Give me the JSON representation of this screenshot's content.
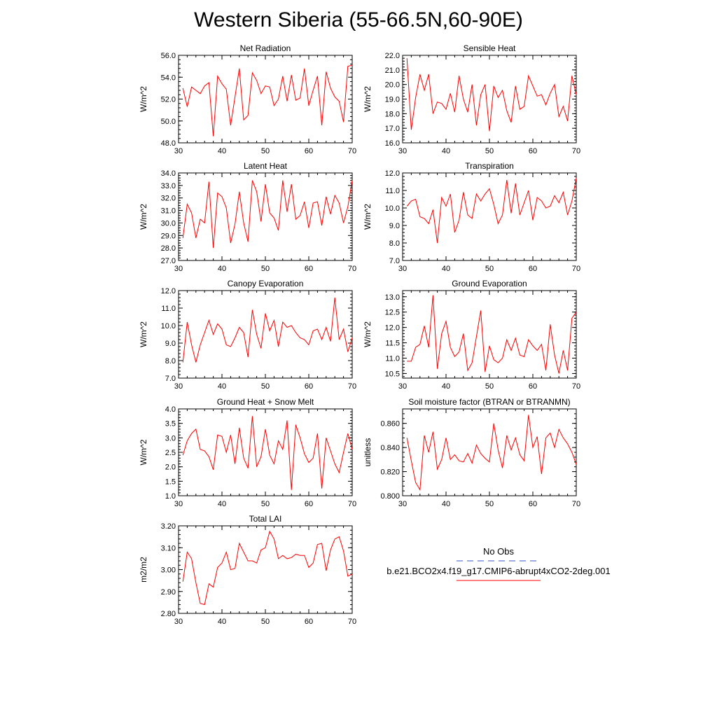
{
  "title": "Western Siberia (55-66.5N,60-90E)",
  "legend": {
    "items": [
      {
        "label": "No Obs",
        "color": "#3355cc",
        "style": "dashed"
      },
      {
        "label": "b.e21.BCO2x4.f19_g17.CMIP6-abrupt4xCO2-2deg.001",
        "color": "#ff0000",
        "style": "solid"
      }
    ]
  },
  "chart_data": [
    {
      "type": "line",
      "title": "Net Radiation",
      "ylabel": "W/m^2",
      "xlim": [
        30,
        70
      ],
      "ylim": [
        48,
        56
      ],
      "yticks": [
        "48.0",
        "50.0",
        "52.0",
        "54.0",
        "56.0"
      ],
      "xticks": [
        "30",
        "40",
        "50",
        "60",
        "70"
      ],
      "series": [
        {
          "color": "#ff0000",
          "x": [
            31,
            32,
            33,
            34,
            35,
            36,
            37,
            38,
            39,
            40,
            41,
            42,
            43,
            44,
            45,
            46,
            47,
            48,
            49,
            50,
            51,
            52,
            53,
            54,
            55,
            56,
            57,
            58,
            59,
            60,
            61,
            62,
            63,
            64,
            65,
            66,
            67,
            68,
            69,
            70
          ],
          "values": [
            53.0,
            51.3,
            53.1,
            52.8,
            52.5,
            53.2,
            53.5,
            48.6,
            54.1,
            53.4,
            52.9,
            49.6,
            52.2,
            54.8,
            50.1,
            50.5,
            54.4,
            53.7,
            52.5,
            53.2,
            53.1,
            51.4,
            52.0,
            54.1,
            51.8,
            54.2,
            51.9,
            52.1,
            54.8,
            51.4,
            52.8,
            54.1,
            49.6,
            54.5,
            53.0,
            52.2,
            51.8,
            49.9,
            55.0,
            55.1
          ]
        }
      ]
    },
    {
      "type": "line",
      "title": "Sensible Heat",
      "ylabel": "W/m^2",
      "xlim": [
        30,
        70
      ],
      "ylim": [
        16,
        22
      ],
      "yticks": [
        "16.0",
        "17.0",
        "18.0",
        "19.0",
        "20.0",
        "21.0",
        "22.0"
      ],
      "xticks": [
        "30",
        "40",
        "50",
        "60",
        "70"
      ],
      "series": [
        {
          "color": "#ff0000",
          "x": [
            31,
            32,
            33,
            34,
            35,
            36,
            37,
            38,
            39,
            40,
            41,
            42,
            43,
            44,
            45,
            46,
            47,
            48,
            49,
            50,
            51,
            52,
            53,
            54,
            55,
            56,
            57,
            58,
            59,
            60,
            61,
            62,
            63,
            64,
            65,
            66,
            67,
            68,
            69,
            70
          ],
          "values": [
            21.8,
            16.9,
            19.1,
            20.7,
            19.6,
            20.7,
            18.0,
            18.8,
            18.7,
            18.3,
            19.4,
            18.1,
            20.6,
            19.0,
            18.1,
            20.0,
            17.2,
            19.3,
            20.0,
            16.8,
            19.9,
            19.1,
            19.6,
            18.2,
            17.4,
            19.9,
            18.3,
            18.5,
            20.6,
            19.9,
            19.2,
            19.3,
            18.6,
            19.4,
            20.0,
            17.8,
            18.5,
            17.5,
            20.6,
            19.3
          ]
        }
      ]
    },
    {
      "type": "line",
      "title": "Latent Heat",
      "ylabel": "W/m^2",
      "xlim": [
        30,
        70
      ],
      "ylim": [
        27,
        34
      ],
      "yticks": [
        "27.0",
        "28.0",
        "29.0",
        "30.0",
        "31.0",
        "32.0",
        "33.0",
        "34.0"
      ],
      "xticks": [
        "30",
        "40",
        "50",
        "60",
        "70"
      ],
      "series": [
        {
          "color": "#ff0000",
          "x": [
            31,
            32,
            33,
            34,
            35,
            36,
            37,
            38,
            39,
            40,
            41,
            42,
            43,
            44,
            45,
            46,
            47,
            48,
            49,
            50,
            51,
            52,
            53,
            54,
            55,
            56,
            57,
            58,
            59,
            60,
            61,
            62,
            63,
            64,
            65,
            66,
            67,
            68,
            69,
            70
          ],
          "values": [
            28.8,
            31.5,
            30.8,
            28.8,
            30.3,
            30.0,
            33.3,
            28.0,
            32.4,
            32.1,
            31.2,
            28.4,
            29.9,
            32.5,
            30.0,
            28.5,
            33.4,
            32.5,
            30.1,
            33.1,
            30.8,
            30.4,
            29.4,
            33.4,
            30.9,
            33.1,
            30.3,
            30.6,
            31.7,
            29.6,
            31.6,
            31.7,
            29.8,
            32.1,
            30.7,
            32.2,
            31.6,
            30.0,
            31.3,
            33.4
          ]
        }
      ]
    },
    {
      "type": "line",
      "title": "Transpiration",
      "ylabel": "W/m^2",
      "xlim": [
        30,
        70
      ],
      "ylim": [
        7,
        12
      ],
      "yticks": [
        "7.0",
        "8.0",
        "9.0",
        "10.0",
        "11.0",
        "12.0"
      ],
      "xticks": [
        "30",
        "40",
        "50",
        "60",
        "70"
      ],
      "series": [
        {
          "color": "#ff0000",
          "x": [
            31,
            32,
            33,
            34,
            35,
            36,
            37,
            38,
            39,
            40,
            41,
            42,
            43,
            44,
            45,
            46,
            47,
            48,
            49,
            50,
            51,
            52,
            53,
            54,
            55,
            56,
            57,
            58,
            59,
            60,
            61,
            62,
            63,
            64,
            65,
            66,
            67,
            68,
            69,
            70
          ],
          "values": [
            10.1,
            10.4,
            10.5,
            9.5,
            9.4,
            9.1,
            9.9,
            8.0,
            10.6,
            10.1,
            10.8,
            8.6,
            9.3,
            10.9,
            9.6,
            9.4,
            10.8,
            10.4,
            10.8,
            11.1,
            10.2,
            9.1,
            9.6,
            11.6,
            9.7,
            11.4,
            9.6,
            10.3,
            11.0,
            9.3,
            10.6,
            10.4,
            10.0,
            10.1,
            10.7,
            10.3,
            10.9,
            9.6,
            10.4,
            11.7
          ]
        }
      ]
    },
    {
      "type": "line",
      "title": "Canopy Evaporation",
      "ylabel": "W/m^2",
      "xlim": [
        30,
        70
      ],
      "ylim": [
        7,
        12
      ],
      "yticks": [
        "7.0",
        "8.0",
        "9.0",
        "10.0",
        "11.0",
        "12.0"
      ],
      "xticks": [
        "30",
        "40",
        "50",
        "60",
        "70"
      ],
      "series": [
        {
          "color": "#ff0000",
          "x": [
            31,
            32,
            33,
            34,
            35,
            36,
            37,
            38,
            39,
            40,
            41,
            42,
            43,
            44,
            45,
            46,
            47,
            48,
            49,
            50,
            51,
            52,
            53,
            54,
            55,
            56,
            57,
            58,
            59,
            60,
            61,
            62,
            63,
            64,
            65,
            66,
            67,
            68,
            69,
            70
          ],
          "values": [
            7.9,
            10.2,
            8.9,
            7.9,
            8.9,
            9.6,
            10.3,
            9.5,
            10.1,
            9.8,
            8.9,
            8.8,
            9.3,
            9.9,
            9.6,
            8.2,
            10.9,
            9.5,
            8.7,
            10.7,
            9.7,
            10.3,
            8.8,
            10.2,
            9.9,
            10.0,
            9.6,
            9.3,
            9.2,
            8.9,
            9.7,
            9.8,
            9.2,
            9.9,
            9.1,
            11.6,
            9.2,
            9.8,
            8.5,
            9.3
          ]
        }
      ]
    },
    {
      "type": "line",
      "title": "Ground Evaporation",
      "ylabel": "W/m^2",
      "xlim": [
        30,
        70
      ],
      "ylim": [
        10.35,
        13.2
      ],
      "yticks": [
        "10.5",
        "11.0",
        "11.5",
        "12.0",
        "12.5",
        "13.0"
      ],
      "xticks": [
        "30",
        "40",
        "50",
        "60",
        "70"
      ],
      "series": [
        {
          "color": "#ff0000",
          "x": [
            31,
            32,
            33,
            34,
            35,
            36,
            37,
            38,
            39,
            40,
            41,
            42,
            43,
            44,
            45,
            46,
            47,
            48,
            49,
            50,
            51,
            52,
            53,
            54,
            55,
            56,
            57,
            58,
            59,
            60,
            61,
            62,
            63,
            64,
            65,
            66,
            67,
            68,
            69,
            70
          ],
          "values": [
            10.9,
            10.9,
            11.35,
            11.45,
            12.05,
            11.35,
            13.05,
            10.65,
            11.8,
            12.2,
            11.35,
            11.05,
            11.2,
            11.8,
            10.6,
            10.85,
            11.7,
            12.55,
            10.55,
            11.4,
            10.95,
            10.85,
            11.0,
            11.6,
            11.25,
            11.65,
            11.1,
            11.05,
            11.6,
            11.4,
            11.25,
            11.45,
            10.6,
            12.1,
            11.1,
            10.5,
            11.25,
            10.6,
            12.3,
            12.5
          ]
        }
      ]
    },
    {
      "type": "line",
      "title": "Ground Heat + Snow Melt",
      "ylabel": "W/m^2",
      "xlim": [
        30,
        70
      ],
      "ylim": [
        1,
        4
      ],
      "yticks": [
        "1.0",
        "1.5",
        "2.0",
        "2.5",
        "3.0",
        "3.5",
        "4.0"
      ],
      "xticks": [
        "30",
        "40",
        "50",
        "60",
        "70"
      ],
      "series": [
        {
          "color": "#ff0000",
          "x": [
            31,
            32,
            33,
            34,
            35,
            36,
            37,
            38,
            39,
            40,
            41,
            42,
            43,
            44,
            45,
            46,
            47,
            48,
            49,
            50,
            51,
            52,
            53,
            54,
            55,
            56,
            57,
            58,
            59,
            60,
            61,
            62,
            63,
            64,
            65,
            66,
            67,
            68,
            69,
            70
          ],
          "values": [
            2.4,
            2.9,
            3.15,
            3.3,
            2.6,
            2.55,
            2.35,
            1.9,
            3.1,
            3.05,
            2.5,
            3.1,
            2.1,
            3.35,
            2.3,
            1.95,
            3.75,
            2.0,
            2.35,
            3.3,
            2.4,
            2.1,
            2.9,
            2.6,
            3.6,
            1.2,
            3.45,
            3.0,
            2.45,
            2.15,
            2.3,
            3.15,
            1.25,
            3.0,
            2.55,
            2.1,
            1.8,
            2.5,
            3.15,
            2.6
          ]
        }
      ]
    },
    {
      "type": "line",
      "title": "Soil moisture factor (BTRAN or BTRANMN)",
      "ylabel": "unitless",
      "xlim": [
        30,
        70
      ],
      "ylim": [
        0.8,
        0.872
      ],
      "yticks": [
        "0.800",
        "0.820",
        "0.840",
        "0.860"
      ],
      "xticks": [
        "30",
        "40",
        "50",
        "60",
        "70"
      ],
      "series": [
        {
          "color": "#ff0000",
          "x": [
            31,
            32,
            33,
            34,
            35,
            36,
            37,
            38,
            39,
            40,
            41,
            42,
            43,
            44,
            45,
            46,
            47,
            48,
            49,
            50,
            51,
            52,
            53,
            54,
            55,
            56,
            57,
            58,
            59,
            60,
            61,
            62,
            63,
            64,
            65,
            66,
            67,
            68,
            69,
            70
          ],
          "values": [
            0.848,
            0.829,
            0.811,
            0.805,
            0.85,
            0.836,
            0.853,
            0.822,
            0.83,
            0.848,
            0.83,
            0.834,
            0.829,
            0.828,
            0.835,
            0.827,
            0.842,
            0.835,
            0.831,
            0.828,
            0.86,
            0.838,
            0.823,
            0.85,
            0.838,
            0.848,
            0.834,
            0.829,
            0.867,
            0.84,
            0.849,
            0.818,
            0.848,
            0.852,
            0.84,
            0.855,
            0.848,
            0.843,
            0.836,
            0.826
          ]
        }
      ]
    },
    {
      "type": "line",
      "title": "Total LAI",
      "ylabel": "m2/m2",
      "xlim": [
        30,
        70
      ],
      "ylim": [
        2.8,
        3.2
      ],
      "yticks": [
        "2.80",
        "2.90",
        "3.00",
        "3.10",
        "3.20"
      ],
      "xticks": [
        "30",
        "40",
        "50",
        "60",
        "70"
      ],
      "series": [
        {
          "color": "#ff0000",
          "x": [
            31,
            32,
            33,
            34,
            35,
            36,
            37,
            38,
            39,
            40,
            41,
            42,
            43,
            44,
            45,
            46,
            47,
            48,
            49,
            50,
            51,
            52,
            53,
            54,
            55,
            56,
            57,
            58,
            59,
            60,
            61,
            62,
            63,
            64,
            65,
            66,
            67,
            68,
            69,
            70
          ],
          "values": [
            2.945,
            3.08,
            3.05,
            2.94,
            2.845,
            2.84,
            2.935,
            2.92,
            3.01,
            3.03,
            3.08,
            3.0,
            3.005,
            3.12,
            3.08,
            3.04,
            3.04,
            3.03,
            3.09,
            3.1,
            3.175,
            3.14,
            3.05,
            3.065,
            3.05,
            3.055,
            3.07,
            3.065,
            3.065,
            3.01,
            3.03,
            3.115,
            3.12,
            2.995,
            3.09,
            3.14,
            3.15,
            3.085,
            2.97,
            2.98
          ]
        }
      ]
    }
  ]
}
